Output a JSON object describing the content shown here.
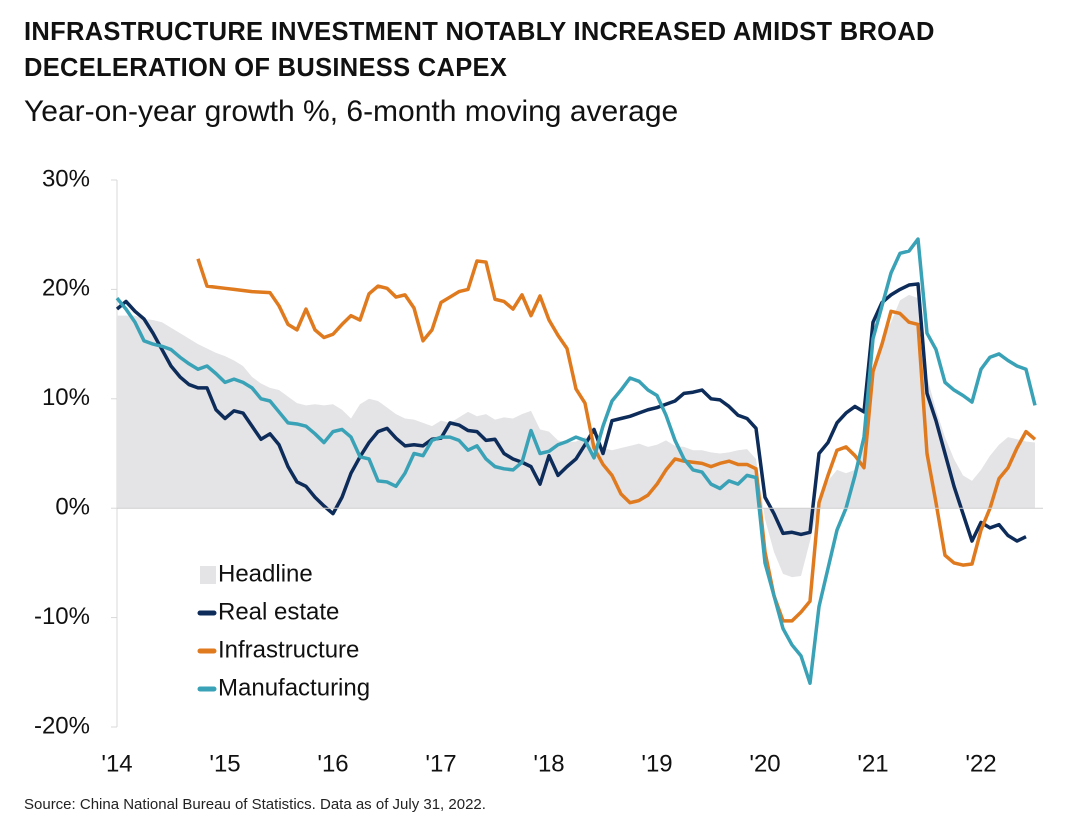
{
  "chart_data": {
    "type": "line",
    "title": "INFRASTRUCTURE INVESTMENT NOTABLY INCREASED AMIDST BROAD DECELERATION OF BUSINESS CAPEX",
    "subtitle": "Year-on-year growth %, 6-month moving average",
    "source": "Source: China National Bureau of Statistics. Data as of July 31, 2022.",
    "categories": [
      "'14",
      null,
      null,
      null,
      null,
      null,
      null,
      null,
      null,
      null,
      null,
      null,
      "'15",
      null,
      null,
      null,
      null,
      null,
      null,
      null,
      null,
      null,
      null,
      null,
      "'16",
      null,
      null,
      null,
      null,
      null,
      null,
      null,
      null,
      null,
      null,
      null,
      "'17",
      null,
      null,
      null,
      null,
      null,
      null,
      null,
      null,
      null,
      null,
      null,
      "'18",
      null,
      null,
      null,
      null,
      null,
      null,
      null,
      null,
      null,
      null,
      null,
      "'19",
      null,
      null,
      null,
      null,
      null,
      null,
      null,
      null,
      null,
      null,
      null,
      "'20",
      null,
      null,
      null,
      null,
      null,
      null,
      null,
      null,
      null,
      null,
      null,
      "'21",
      null,
      null,
      null,
      null,
      null,
      null,
      null,
      null,
      null,
      null,
      null,
      "'22",
      null,
      null,
      null,
      null,
      null,
      null
    ],
    "ylim": [
      -20,
      30
    ],
    "yticks": [
      {
        "value": -20,
        "label": "-20%"
      },
      {
        "value": -10,
        "label": "-10%"
      },
      {
        "value": 0,
        "label": "0%"
      },
      {
        "value": 10,
        "label": "10%"
      },
      {
        "value": 20,
        "label": "20%"
      },
      {
        "value": 30,
        "label": "30%"
      }
    ],
    "legend": "lower left",
    "series": [
      {
        "name": "Headline",
        "kind": "area",
        "color": "#e4e3e6",
        "values": [
          17.6,
          17.6,
          17.6,
          17.3,
          17.2,
          17,
          16.5,
          16,
          15.5,
          15,
          14.6,
          14.2,
          13.9,
          13.5,
          13,
          12,
          11.4,
          11,
          10.8,
          10.2,
          9.6,
          9.4,
          9.5,
          9.4,
          9.5,
          9,
          8.2,
          9.5,
          10,
          9.8,
          9.2,
          8.6,
          8.2,
          8.1,
          7.8,
          7.5,
          8,
          7.8,
          8.3,
          8.8,
          8.4,
          8.6,
          8.1,
          8.3,
          8.2,
          8.6,
          8.9,
          7.2,
          7,
          6.2,
          6,
          6.1,
          6.5,
          6,
          5.5,
          5.3,
          5.5,
          5.7,
          5.9,
          5.6,
          5.8,
          6.2,
          5.7,
          5.6,
          5.3,
          5.3,
          5.1,
          5,
          5.1,
          5.3,
          5.4,
          4.5,
          -1,
          -4,
          -6,
          -6.3,
          -6.2,
          -3,
          0.5,
          2.5,
          3.5,
          3.2,
          3.5,
          7,
          13,
          15.5,
          17,
          19,
          19.5,
          19.2,
          12,
          9,
          6.5,
          4.5,
          3,
          2.5,
          3.5,
          4.8,
          5.8,
          6.5,
          6.3,
          6.1,
          6
        ]
      },
      {
        "name": "Real estate",
        "color": "#0d2c5a",
        "values": [
          18.2,
          18.9,
          18,
          17.3,
          16,
          14.5,
          13,
          12,
          11.3,
          11,
          11,
          9,
          8.2,
          8.9,
          8.7,
          7.5,
          6.3,
          6.8,
          5.8,
          3.8,
          2.4,
          2,
          1,
          0.2,
          -0.5,
          1,
          3.2,
          4.7,
          6,
          7,
          7.3,
          6.4,
          5.7,
          5.8,
          5.7,
          6.3,
          6.4,
          7.8,
          7.6,
          7.1,
          7,
          6.2,
          6.3,
          5,
          4.5,
          4.2,
          3.8,
          2.2,
          4.8,
          3,
          3.8,
          4.5,
          5.8,
          7.2,
          5,
          8,
          8.2,
          8.4,
          8.7,
          9,
          9.2,
          9.5,
          9.8,
          10.5,
          10.6,
          10.8,
          10,
          9.9,
          9.3,
          8.5,
          8.2,
          7.3,
          1,
          -0.5,
          -2.3,
          -2.2,
          -2.4,
          -2.2,
          5,
          6,
          7.8,
          8.7,
          9.3,
          8.8,
          17,
          18.8,
          19.5,
          20,
          20.4,
          20.5,
          10.5,
          8,
          5,
          2,
          -0.5,
          -3,
          -1.3,
          -1.8,
          -1.5,
          -2.5,
          -3,
          -2.6,
          null
        ]
      },
      {
        "name": "Infrastructure",
        "color": "#e07a1f",
        "values": [
          null,
          null,
          null,
          null,
          null,
          null,
          null,
          null,
          null,
          22.8,
          20.3,
          20.2,
          20.1,
          20,
          19.9,
          19.8,
          19.75,
          19.7,
          18.5,
          16.8,
          16.3,
          18.2,
          16.3,
          15.6,
          15.9,
          16.8,
          17.6,
          17.2,
          19.6,
          20.3,
          20.1,
          19.3,
          19.5,
          18.3,
          15.3,
          16.3,
          18.8,
          19.3,
          19.8,
          20,
          22.6,
          22.5,
          19.1,
          18.9,
          18.2,
          19.5,
          17.6,
          19.4,
          17.2,
          15.8,
          14.6,
          10.9,
          9.6,
          5.5,
          4,
          3,
          1.3,
          0.5,
          0.7,
          1.2,
          2.2,
          3.5,
          4.5,
          4.3,
          4.2,
          4.1,
          3.8,
          4.1,
          4.3,
          4,
          4,
          3.6,
          -4,
          -8,
          -10.3,
          -10.3,
          -9.5,
          -8.5,
          0.5,
          3,
          5.3,
          5.6,
          4.8,
          3.7,
          12.5,
          15,
          18,
          17.8,
          17,
          16.8,
          5,
          0.5,
          -4.3,
          -5,
          -5.2,
          -5.1,
          -2,
          0,
          2.7,
          3.7,
          5.5,
          7,
          6.3
        ]
      },
      {
        "name": "Manufacturing",
        "color": "#3aa2b6",
        "values": [
          19.2,
          18.2,
          17,
          15.3,
          15,
          14.8,
          14.5,
          13.8,
          13.2,
          12.7,
          13,
          12.3,
          11.5,
          11.8,
          11.5,
          11,
          10,
          9.8,
          8.8,
          7.8,
          7.7,
          7.5,
          6.8,
          6,
          7,
          7.2,
          6.5,
          4.7,
          4.5,
          2.5,
          2.4,
          2,
          3.2,
          5,
          4.8,
          6.2,
          6.5,
          6.5,
          6.2,
          5.3,
          5.7,
          4.5,
          3.8,
          3.6,
          3.5,
          4.2,
          7.1,
          5,
          5.2,
          5.8,
          6.1,
          6.5,
          6.2,
          4.6,
          7.5,
          9.8,
          10.8,
          11.9,
          11.6,
          10.8,
          10.3,
          8.5,
          6.2,
          4.5,
          3.5,
          3.3,
          2.2,
          1.8,
          2.5,
          2.2,
          3,
          2.8,
          -5,
          -8,
          -11,
          -12.5,
          -13.5,
          -16,
          -9,
          -5.5,
          -2,
          0,
          3,
          6.5,
          15.5,
          18.5,
          21.5,
          23.3,
          23.5,
          24.6,
          16,
          14.5,
          11.5,
          10.8,
          10.3,
          9.7,
          12.7,
          13.8,
          14.1,
          13.5,
          13,
          12.7,
          9.4
        ]
      }
    ]
  }
}
